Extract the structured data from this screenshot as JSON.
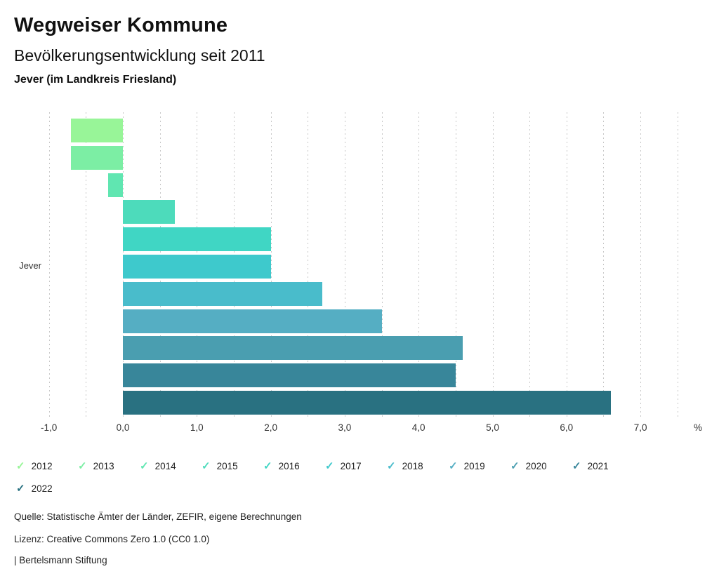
{
  "header": {
    "title": "Wegweiser Kommune",
    "subtitle": "Bevölkerungsentwicklung seit 2011",
    "region": "Jever (im Landkreis Friesland)"
  },
  "chart_data": {
    "type": "bar",
    "orientation": "horizontal",
    "title": "Bevölkerungsentwicklung seit 2011",
    "category_label": "Jever",
    "unit": "%",
    "series": [
      {
        "name": "2012",
        "value": -0.7,
        "color": "#98F598"
      },
      {
        "name": "2013",
        "value": -0.7,
        "color": "#7CEEA4"
      },
      {
        "name": "2014",
        "value": -0.2,
        "color": "#60E6B1"
      },
      {
        "name": "2015",
        "value": 0.7,
        "color": "#4DDBBB"
      },
      {
        "name": "2016",
        "value": 2.0,
        "color": "#40D6C4"
      },
      {
        "name": "2017",
        "value": 2.0,
        "color": "#3EC9CC"
      },
      {
        "name": "2018",
        "value": 2.7,
        "color": "#49BCCB"
      },
      {
        "name": "2019",
        "value": 3.5,
        "color": "#55AEC3"
      },
      {
        "name": "2020",
        "value": 4.6,
        "color": "#4A9EB0"
      },
      {
        "name": "2021",
        "value": 4.5,
        "color": "#38869A"
      },
      {
        "name": "2022",
        "value": 6.6,
        "color": "#297181"
      }
    ],
    "xlim": [
      -1.0,
      7.5
    ],
    "grid_step": 0.5,
    "grid": true,
    "x_ticks": [
      "-1,0",
      "0,0",
      "1,0",
      "2,0",
      "3,0",
      "4,0",
      "5,0",
      "6,0",
      "7,0"
    ],
    "x_tick_values": [
      -1,
      0,
      1,
      2,
      3,
      4,
      5,
      6,
      7
    ],
    "legend_position": "bottom"
  },
  "footer": {
    "source": "Quelle: Statistische Ämter der Länder, ZEFIR, eigene Berechnungen",
    "license": "Lizenz: Creative Commons Zero 1.0 (CC0 1.0)",
    "attribution": "| Bertelsmann Stiftung"
  }
}
